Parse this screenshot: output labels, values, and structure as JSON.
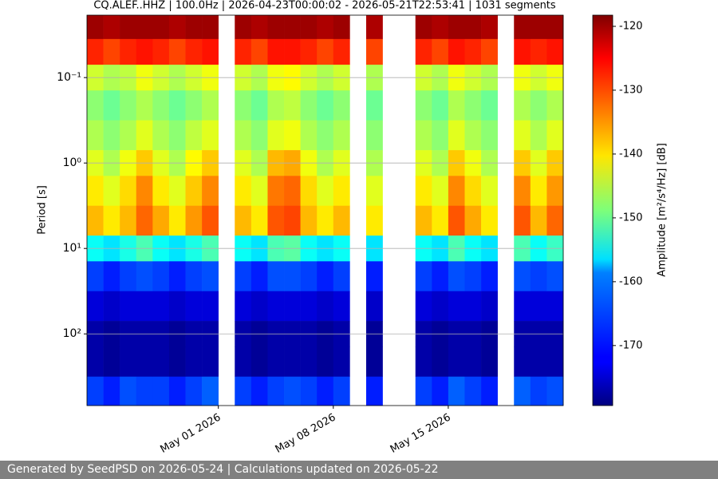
{
  "chart_data": {
    "type": "heatmap",
    "title": "CQ.ALEF..HHZ | 100.0Hz | 2026-04-23T00:00:02 - 2026-05-21T22:53:41 | 1031 segments",
    "ylabel": "Period [s]",
    "colorbar_label": "Amplitude [m²/s⁴/Hz] [dB]",
    "x": [
      "2026-04-23",
      "2026-04-24",
      "2026-04-25",
      "2026-04-26",
      "2026-04-27",
      "2026-04-28",
      "2026-04-29",
      "2026-04-30",
      "2026-05-01",
      "2026-05-02",
      "2026-05-03",
      "2026-05-04",
      "2026-05-05",
      "2026-05-06",
      "2026-05-07",
      "2026-05-08",
      "2026-05-09",
      "2026-05-10",
      "2026-05-11",
      "2026-05-12",
      "2026-05-13",
      "2026-05-14",
      "2026-05-15",
      "2026-05-16",
      "2026-05-17",
      "2026-05-18",
      "2026-05-19",
      "2026-05-20",
      "2026-05-21"
    ],
    "y": [
      0.025,
      0.05,
      0.1,
      0.2,
      0.5,
      1,
      2,
      5,
      10,
      20,
      50,
      100,
      200,
      500
    ],
    "values": [
      [
        -120,
        -128,
        -144,
        -148,
        -146,
        -143,
        -140,
        -137,
        -156,
        -168,
        -174,
        -177,
        -177,
        -168
      ],
      [
        -121,
        -130,
        -146,
        -150,
        -148,
        -146,
        -143,
        -140,
        -158,
        -170,
        -175,
        -178,
        -178,
        -170
      ],
      [
        -120,
        -128,
        -145,
        -148,
        -146,
        -142,
        -139,
        -137,
        -155,
        -168,
        -174,
        -177,
        -177,
        -167
      ],
      [
        -120,
        -127,
        -142,
        -146,
        -143,
        -138,
        -134,
        -132,
        -152,
        -167,
        -174,
        -177,
        -177,
        -168
      ],
      [
        -120,
        -128,
        -144,
        -148,
        -146,
        -143,
        -140,
        -136,
        -156,
        -168,
        -174,
        -177,
        -177,
        -168
      ],
      [
        -121,
        -130,
        -146,
        -150,
        -148,
        -146,
        -143,
        -140,
        -158,
        -170,
        -175,
        -178,
        -178,
        -170
      ],
      [
        -120,
        -128,
        -144,
        -148,
        -145,
        -141,
        -138,
        -135,
        -155,
        -168,
        -174,
        -177,
        -177,
        -168
      ],
      [
        -120,
        -127,
        -142,
        -146,
        -143,
        -138,
        -134,
        -131,
        -152,
        -167,
        -174,
        -177,
        -177,
        -166
      ],
      null,
      [
        -120,
        -128,
        -144,
        -148,
        -146,
        -143,
        -140,
        -137,
        -156,
        -168,
        -174,
        -177,
        -177,
        -168
      ],
      [
        -121,
        -130,
        -146,
        -150,
        -148,
        -146,
        -143,
        -140,
        -158,
        -170,
        -175,
        -178,
        -178,
        -170
      ],
      [
        -120,
        -127,
        -142,
        -146,
        -143,
        -137,
        -133,
        -131,
        -152,
        -167,
        -174,
        -177,
        -177,
        -168
      ],
      [
        -120,
        -127,
        -141,
        -145,
        -142,
        -136,
        -132,
        -130,
        -151,
        -167,
        -174,
        -177,
        -177,
        -167
      ],
      [
        -120,
        -128,
        -144,
        -148,
        -146,
        -142,
        -139,
        -137,
        -156,
        -168,
        -174,
        -177,
        -177,
        -168
      ],
      [
        -121,
        -130,
        -146,
        -150,
        -148,
        -146,
        -143,
        -140,
        -158,
        -170,
        -175,
        -178,
        -178,
        -170
      ],
      [
        -120,
        -128,
        -144,
        -148,
        -146,
        -143,
        -140,
        -137,
        -156,
        -168,
        -174,
        -177,
        -177,
        -168
      ],
      null,
      [
        -121,
        -130,
        -146,
        -150,
        -148,
        -146,
        -143,
        -140,
        -158,
        -170,
        -175,
        -178,
        -178,
        -170
      ],
      null,
      null,
      [
        -120,
        -128,
        -144,
        -148,
        -146,
        -143,
        -140,
        -137,
        -156,
        -168,
        -174,
        -177,
        -177,
        -168
      ],
      [
        -121,
        -130,
        -146,
        -150,
        -148,
        -146,
        -143,
        -140,
        -158,
        -170,
        -175,
        -178,
        -178,
        -170
      ],
      [
        -120,
        -127,
        -142,
        -146,
        -143,
        -138,
        -134,
        -131,
        -152,
        -167,
        -174,
        -177,
        -177,
        -166
      ],
      [
        -120,
        -128,
        -144,
        -148,
        -146,
        -142,
        -139,
        -136,
        -156,
        -168,
        -174,
        -177,
        -177,
        -168
      ],
      [
        -121,
        -130,
        -146,
        -150,
        -148,
        -146,
        -143,
        -140,
        -158,
        -170,
        -175,
        -178,
        -178,
        -170
      ],
      null,
      [
        -120,
        -127,
        -142,
        -146,
        -143,
        -138,
        -134,
        -131,
        -152,
        -167,
        -174,
        -177,
        -177,
        -166
      ],
      [
        -120,
        -128,
        -144,
        -148,
        -146,
        -143,
        -140,
        -137,
        -156,
        -168,
        -174,
        -177,
        -177,
        -168
      ],
      [
        -120,
        -127,
        -142,
        -146,
        -143,
        -138,
        -135,
        -132,
        -153,
        -167,
        -174,
        -177,
        -177,
        -167
      ]
    ],
    "xlim": [
      "2026-04-23",
      "2026-05-22"
    ],
    "xticks": [
      {
        "value": "2026-05-01",
        "label": "May 01 2026"
      },
      {
        "value": "2026-05-08",
        "label": "May 08 2026"
      },
      {
        "value": "2026-05-15",
        "label": "May 15 2026"
      }
    ],
    "ylim": [
      0.0186,
      690
    ],
    "yticks": [
      {
        "value": 0.1,
        "label": "10⁻¹"
      },
      {
        "value": 1,
        "label": "10⁰"
      },
      {
        "value": 10,
        "label": "10¹"
      },
      {
        "value": 100,
        "label": "10²"
      }
    ],
    "yscale": "log",
    "yinverted": true,
    "grid": true,
    "colormap": "jet",
    "clim": [
      -179.4,
      -118.25
    ],
    "cticks": [
      -120,
      -130,
      -140,
      -150,
      -160,
      -170
    ]
  },
  "footer": "Generated by SeedPSD on 2026-05-24 | Calculations updated on 2026-05-22"
}
